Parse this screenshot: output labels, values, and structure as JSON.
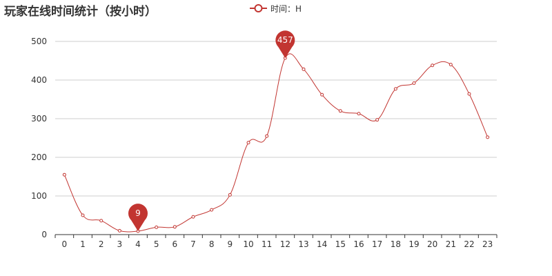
{
  "chart_data": {
    "type": "line",
    "title": "玩家在线时间统计（按小时）",
    "x": [
      "0",
      "1",
      "2",
      "3",
      "4",
      "5",
      "6",
      "7",
      "8",
      "9",
      "10",
      "11",
      "12",
      "13",
      "14",
      "15",
      "16",
      "17",
      "18",
      "19",
      "20",
      "21",
      "22",
      "23"
    ],
    "series": [
      {
        "name": "时间：H",
        "values": [
          155,
          50,
          36,
          10,
          9,
          19,
          20,
          46,
          64,
          103,
          238,
          255,
          457,
          428,
          362,
          320,
          313,
          297,
          377,
          392,
          438,
          440,
          364,
          252
        ],
        "smooth": true
      }
    ],
    "ylim": [
      0,
      500
    ],
    "yticks": [
      0,
      100,
      200,
      300,
      400,
      500
    ],
    "grid": true,
    "legend_position": "top-center",
    "markers": [
      {
        "type": "max",
        "label": "457",
        "x": "12",
        "value": 457
      },
      {
        "type": "min",
        "label": "9",
        "x": "4",
        "value": 9
      }
    ],
    "colors": {
      "series": "#c23531",
      "axis": "#333333",
      "grid": "#cccccc",
      "pin_text": "#ffffff"
    }
  }
}
